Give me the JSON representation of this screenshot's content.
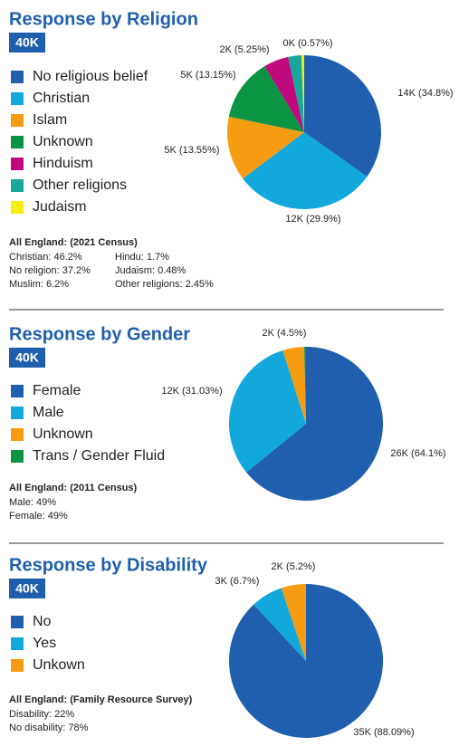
{
  "chart_data": [
    {
      "type": "pie",
      "title": "Response by Religion",
      "badge": "40K",
      "categories": [
        "No religious belief",
        "Christian",
        "Islam",
        "Unknown",
        "Hinduism",
        "Other religions",
        "Judaism"
      ],
      "values": [
        34.8,
        29.9,
        13.55,
        13.15,
        5.25,
        2.78,
        0.57
      ],
      "value_labels": [
        "14K (34.8%)",
        "12K (29.9%)",
        "5K (13.55%)",
        "5K (13.15%)",
        "2K (5.25%)",
        null,
        "0K (0.57%)"
      ],
      "colors": [
        "#1f5fad",
        "#12a8dc",
        "#f59c12",
        "#0b9444",
        "#c0087f",
        "#17a89a",
        "#f7ec13"
      ],
      "notes": {
        "heading": "All England: (2021 Census)",
        "columns": [
          [
            "Christian: 46.2%",
            "No religion: 37.2%",
            "Muslim: 6.2%"
          ],
          [
            "Hindu: 1.7%",
            "Judaism: 0.48%",
            "Other religions: 2.45%"
          ]
        ]
      }
    },
    {
      "type": "pie",
      "title": "Response by Gender",
      "badge": "40K",
      "categories": [
        "Female",
        "Male",
        "Unknown",
        "Trans / Gender Fluid"
      ],
      "values": [
        64.1,
        31.03,
        4.5,
        0.37
      ],
      "value_labels": [
        "26K (64.1%)",
        "12K (31.03%)",
        "2K (4.5%)",
        null
      ],
      "colors": [
        "#1f5fad",
        "#12a8dc",
        "#f59c12",
        "#0b9444"
      ],
      "notes": {
        "heading": "All England: (2011 Census)",
        "columns": [
          [
            "Male: 49%",
            "Female: 49%"
          ]
        ]
      }
    },
    {
      "type": "pie",
      "title": "Response by Disability",
      "badge": "40K",
      "categories": [
        "No",
        "Yes",
        "Unkown"
      ],
      "values": [
        88.09,
        6.7,
        5.2
      ],
      "value_labels": [
        "35K (88.09%)",
        "3K (6.7%)",
        "2K (5.2%)"
      ],
      "colors": [
        "#1f5fad",
        "#12a8dc",
        "#f59c12"
      ],
      "notes": {
        "heading": "All England: (Family Resource Survey)",
        "columns": [
          [
            "Disability: 22%",
            "No disability: 78%"
          ]
        ]
      }
    }
  ]
}
